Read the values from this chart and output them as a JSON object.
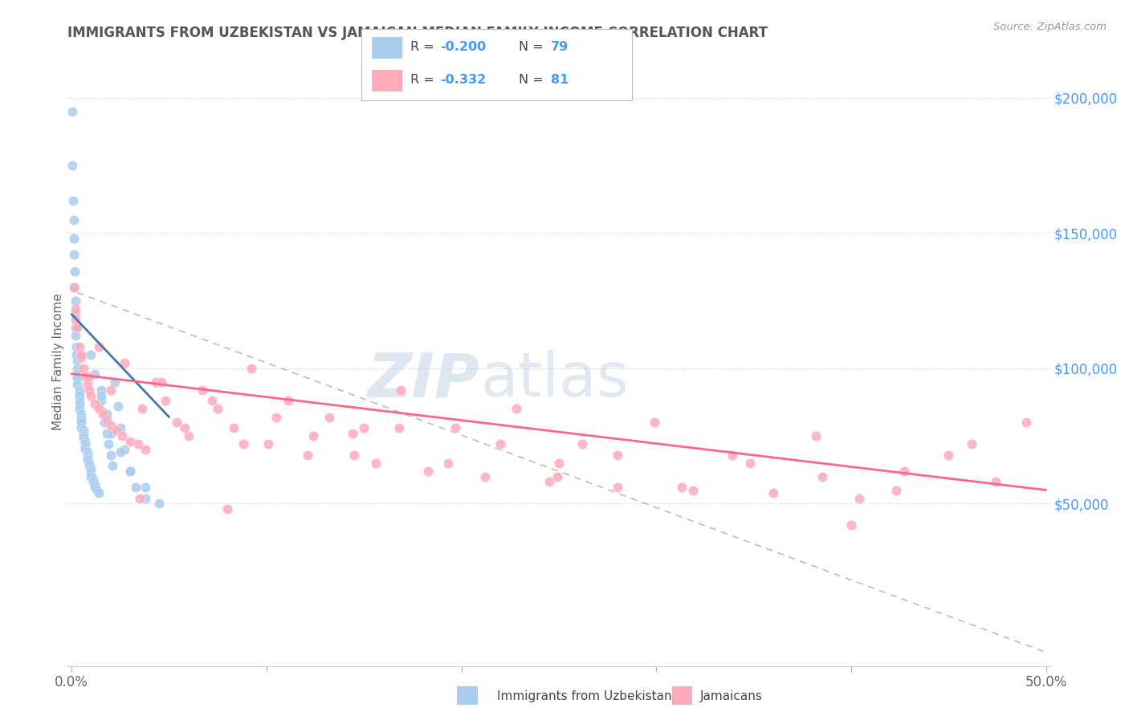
{
  "title": "IMMIGRANTS FROM UZBEKISTAN VS JAMAICAN MEDIAN FAMILY INCOME CORRELATION CHART",
  "source": "Source: ZipAtlas.com",
  "ylabel": "Median Family Income",
  "uzbek_R": -0.2,
  "uzbek_N": 79,
  "jamaican_R": -0.332,
  "jamaican_N": 81,
  "uzbek_color": "#aaccee",
  "jamaican_color": "#ffaabb",
  "uzbek_line_color": "#4477aa",
  "jamaican_line_color": "#ff6688",
  "dashed_line_color": "#bbbbcc",
  "label_color": "#4499ff",
  "ytick_labels": [
    "$50,000",
    "$100,000",
    "$150,000",
    "$200,000"
  ],
  "ytick_values": [
    50000,
    100000,
    150000,
    200000
  ],
  "ylim": [
    -10000,
    215000
  ],
  "xlim": [
    -0.002,
    0.502
  ],
  "title_color": "#666666",
  "uzbek_scatter_x": [
    0.0005,
    0.0005,
    0.0008,
    0.001,
    0.001,
    0.001,
    0.0015,
    0.0015,
    0.002,
    0.002,
    0.002,
    0.002,
    0.0025,
    0.0025,
    0.003,
    0.003,
    0.003,
    0.003,
    0.003,
    0.003,
    0.004,
    0.004,
    0.004,
    0.004,
    0.004,
    0.004,
    0.005,
    0.005,
    0.005,
    0.005,
    0.005,
    0.006,
    0.006,
    0.006,
    0.006,
    0.007,
    0.007,
    0.007,
    0.007,
    0.008,
    0.008,
    0.008,
    0.008,
    0.009,
    0.009,
    0.01,
    0.01,
    0.01,
    0.01,
    0.011,
    0.011,
    0.012,
    0.012,
    0.013,
    0.014,
    0.015,
    0.015,
    0.016,
    0.017,
    0.018,
    0.019,
    0.02,
    0.021,
    0.022,
    0.024,
    0.025,
    0.027,
    0.03,
    0.033,
    0.038,
    0.01,
    0.012,
    0.015,
    0.018,
    0.02,
    0.025,
    0.03,
    0.038,
    0.045
  ],
  "uzbek_scatter_y": [
    195000,
    175000,
    162000,
    155000,
    148000,
    142000,
    136000,
    130000,
    125000,
    120000,
    115000,
    112000,
    108000,
    105000,
    103000,
    100000,
    98000,
    97000,
    96000,
    94000,
    92000,
    91000,
    90000,
    88000,
    87000,
    85000,
    83000,
    82000,
    81000,
    80000,
    78000,
    77000,
    76000,
    75000,
    74000,
    73000,
    72000,
    71000,
    70000,
    69000,
    68000,
    67000,
    66000,
    65000,
    64000,
    63000,
    62000,
    61000,
    60000,
    59000,
    58000,
    57000,
    56000,
    55000,
    54000,
    92000,
    88000,
    84000,
    80000,
    76000,
    72000,
    68000,
    64000,
    95000,
    86000,
    78000,
    70000,
    62000,
    56000,
    52000,
    105000,
    98000,
    90000,
    83000,
    76000,
    69000,
    62000,
    56000,
    50000
  ],
  "jamaican_scatter_x": [
    0.001,
    0.002,
    0.003,
    0.004,
    0.005,
    0.006,
    0.007,
    0.008,
    0.009,
    0.01,
    0.012,
    0.014,
    0.016,
    0.018,
    0.02,
    0.023,
    0.026,
    0.03,
    0.034,
    0.038,
    0.043,
    0.048,
    0.054,
    0.06,
    0.067,
    0.075,
    0.083,
    0.092,
    0.101,
    0.111,
    0.121,
    0.132,
    0.144,
    0.156,
    0.169,
    0.183,
    0.197,
    0.212,
    0.228,
    0.245,
    0.262,
    0.28,
    0.299,
    0.319,
    0.339,
    0.36,
    0.382,
    0.404,
    0.427,
    0.45,
    0.474,
    0.002,
    0.005,
    0.009,
    0.014,
    0.02,
    0.027,
    0.036,
    0.046,
    0.058,
    0.072,
    0.088,
    0.105,
    0.124,
    0.145,
    0.168,
    0.193,
    0.22,
    0.249,
    0.28,
    0.313,
    0.348,
    0.385,
    0.423,
    0.462,
    0.035,
    0.08,
    0.15,
    0.25,
    0.4,
    0.49
  ],
  "jamaican_scatter_y": [
    130000,
    122000,
    115000,
    108000,
    104000,
    100000,
    97000,
    94000,
    92000,
    90000,
    87000,
    85000,
    83000,
    81000,
    79000,
    77000,
    75000,
    73000,
    72000,
    70000,
    95000,
    88000,
    80000,
    75000,
    92000,
    85000,
    78000,
    100000,
    72000,
    88000,
    68000,
    82000,
    76000,
    65000,
    92000,
    62000,
    78000,
    60000,
    85000,
    58000,
    72000,
    56000,
    80000,
    55000,
    68000,
    54000,
    75000,
    52000,
    62000,
    68000,
    58000,
    118000,
    105000,
    97000,
    108000,
    92000,
    102000,
    85000,
    95000,
    78000,
    88000,
    72000,
    82000,
    75000,
    68000,
    78000,
    65000,
    72000,
    60000,
    68000,
    56000,
    65000,
    60000,
    55000,
    72000,
    52000,
    48000,
    78000,
    65000,
    42000,
    80000
  ],
  "uzbek_line": [
    0.0,
    0.05,
    120000,
    82000
  ],
  "jamaican_line": [
    0.0,
    0.5,
    98000,
    55000
  ],
  "dashed_line": [
    0.003,
    0.5,
    128000,
    -5000
  ],
  "xtick_positions": [
    0.0,
    0.1,
    0.2,
    0.3,
    0.4,
    0.5
  ],
  "xtick_labels_shown": [
    "0.0%",
    "",
    "",
    "",
    "",
    "50.0%"
  ]
}
